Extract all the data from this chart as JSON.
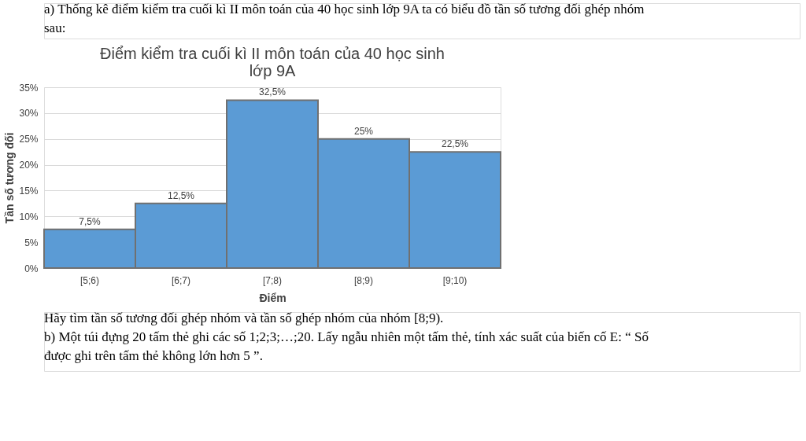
{
  "chart_data": {
    "type": "bar",
    "title": "Điểm kiểm tra cuối kì II môn toán của 40 học sinh lớp 9A",
    "xlabel": "Điểm",
    "ylabel": "Tần số tương đối",
    "categories": [
      "[5;6)",
      "[6;7)",
      "[7;8)",
      "[8;9)",
      "[9;10)"
    ],
    "values": [
      7.5,
      12.5,
      32.5,
      25,
      22.5
    ],
    "value_labels": [
      "7,5%",
      "12,5%",
      "32,5%",
      "25%",
      "22,5%"
    ],
    "color": "#5b9bd5",
    "ylim": [
      0,
      35
    ],
    "yticks": [
      {
        "value": 0,
        "label": "0%"
      },
      {
        "value": 5,
        "label": "5%"
      },
      {
        "value": 10,
        "label": "10%"
      },
      {
        "value": 15,
        "label": "15%"
      },
      {
        "value": 20,
        "label": "20%"
      },
      {
        "value": 25,
        "label": "25%"
      },
      {
        "value": 30,
        "label": "30%"
      },
      {
        "value": 35,
        "label": "35%"
      }
    ],
    "grid": "y",
    "annotations": [
      "a) Thống kê điểm kiểm tra cuối kì II môn toán của 40 học sinh lớp 9A ta có biểu đồ tần số tương đối ghép nhóm sau:",
      "Hãy tìm tần số tương đối ghép nhóm và tần số ghép nhóm của nhóm [8;9).",
      "b) Một túi đựng 20 tấm thẻ ghi các số 1;2;3;…;20. Lấy ngẫu nhiên một tấm thẻ, tính xác suất của biến cố E: “ Số được ghi trên tấm thẻ không lớn hơn 5 ”."
    ]
  }
}
